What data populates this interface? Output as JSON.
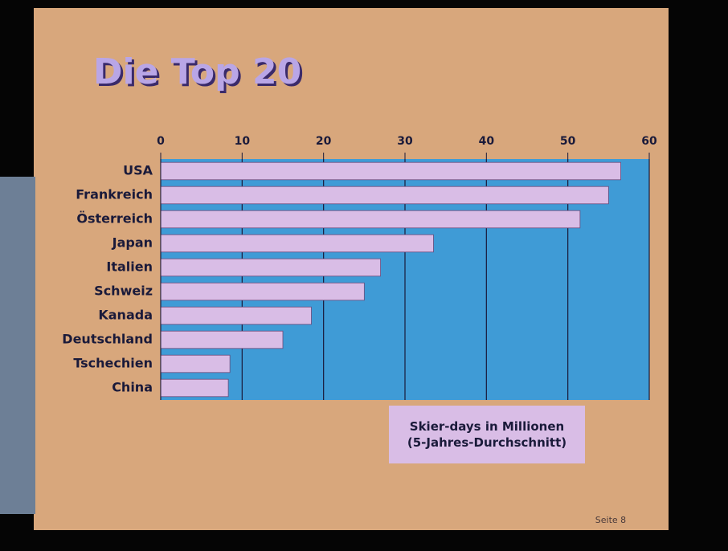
{
  "chart_data": {
    "type": "bar",
    "horizontal": true,
    "title": "Die Top 20",
    "categories": [
      "USA",
      "Frankreich",
      "Österreich",
      "Japan",
      "Italien",
      "Schweiz",
      "Kanada",
      "Deutschland",
      "Tschechien",
      "China"
    ],
    "values": [
      56.5,
      55,
      51.5,
      33.5,
      27,
      25,
      18.5,
      15,
      8.5,
      8.3
    ],
    "color": "#d9bde6",
    "xlabel": "Skier-days in Millionen (5-Jahres-Durchschnitt)",
    "xlim": [
      0,
      60
    ],
    "xticks": [
      0,
      10,
      20,
      30,
      40,
      50,
      60
    ],
    "grid": true,
    "footer": "Seite 8"
  }
}
